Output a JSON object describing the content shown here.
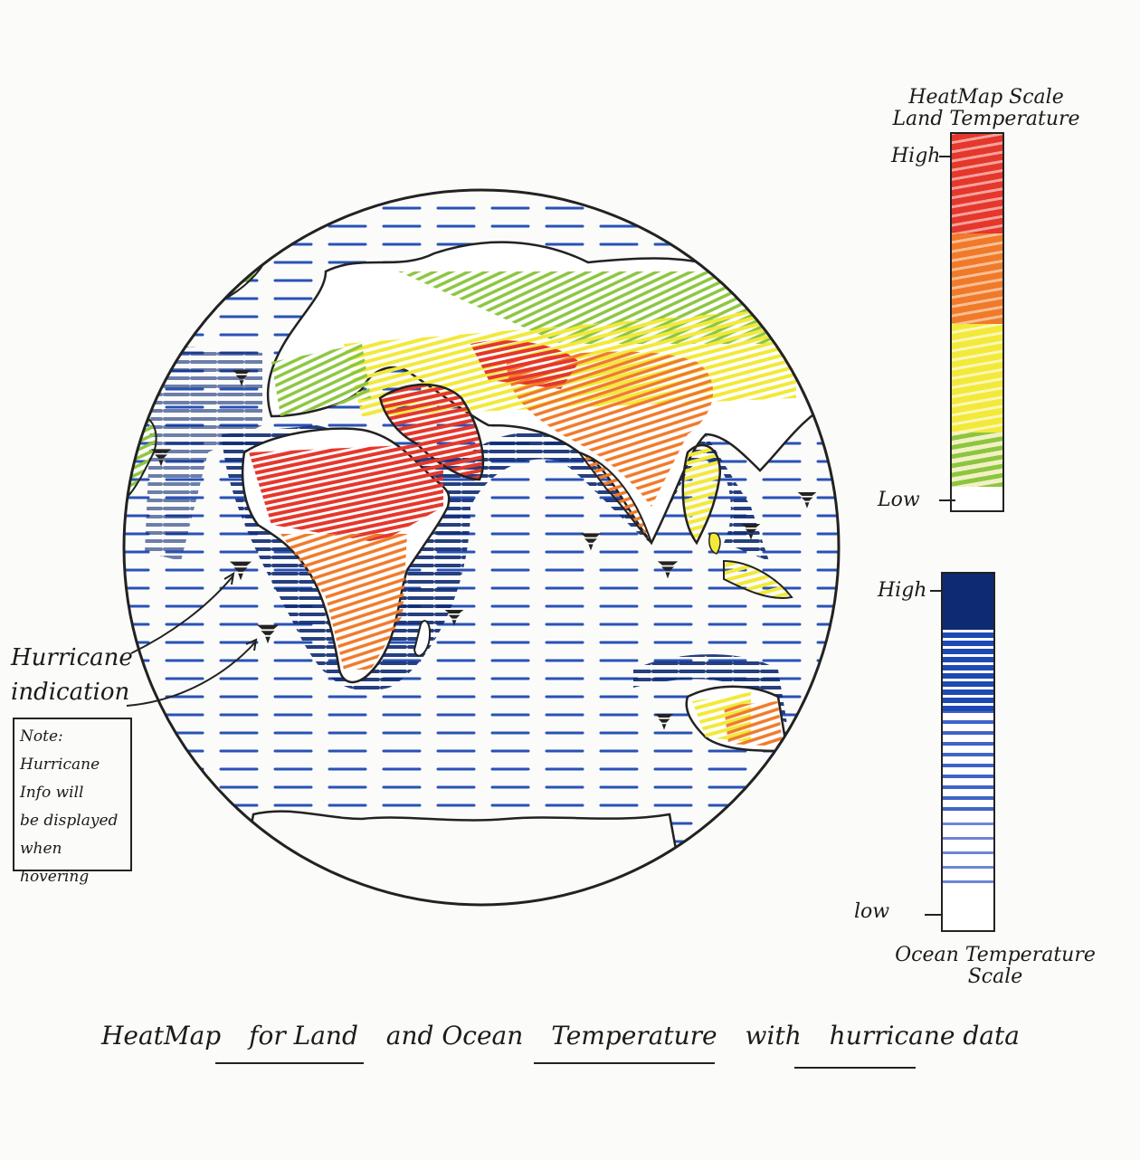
{
  "title": "HeatMap for Land and Ocean Temperature with hurricane data",
  "caption_parts": [
    "HeatMap",
    "for Land",
    "and Ocean",
    "Temperature",
    "with",
    "hurricane data"
  ],
  "land_scale": {
    "title_line1": "HeatMap Scale",
    "title_line2": "Land Temperature",
    "high_label": "High",
    "low_label": "Low",
    "colors": [
      "#e5372c",
      "#f07a2a",
      "#f2e93a",
      "#8cc63f"
    ]
  },
  "ocean_scale": {
    "title_line1": "Ocean Temperature",
    "title_line2": "Scale",
    "high_label": "High",
    "low_label": "low",
    "colors": [
      "#0d2a73",
      "#1e49b5",
      "#3f63c9",
      "#ffffff"
    ]
  },
  "annotation": {
    "label_line1": "Hurricane",
    "label_line2": "indication"
  },
  "note": {
    "lines": [
      "Note:",
      "Hurricane",
      "Info will",
      "be displayed",
      "when hovering"
    ]
  },
  "colors": {
    "ocean_deep": "#0d2a73",
    "ocean_mid": "#1e49b5",
    "ocean_light": "#3f63c9",
    "land_hot": "#e5372c",
    "land_warm": "#f07a2a",
    "land_mild": "#f2e93a",
    "land_cool": "#8cc63f",
    "ink": "#222222"
  }
}
